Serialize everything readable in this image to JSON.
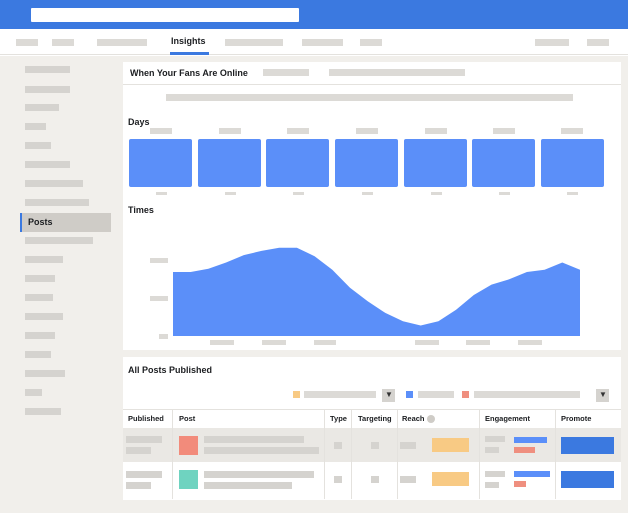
{
  "nav": {
    "active_tab": "Insights"
  },
  "sidebar": {
    "active_item": "Posts"
  },
  "fans_panel": {
    "title": "When Your Fans Are Online",
    "days_label": "Days",
    "times_label": "Times",
    "days_count": 7,
    "times_series_shape": [
      0.61,
      0.61,
      0.64,
      0.7,
      0.77,
      0.81,
      0.84,
      0.84,
      0.76,
      0.63,
      0.46,
      0.33,
      0.22,
      0.14,
      0.1,
      0.14,
      0.25,
      0.39,
      0.49,
      0.54,
      0.61,
      0.63,
      0.7,
      0.63
    ]
  },
  "posts_panel": {
    "title": "All Posts Published",
    "columns": [
      "Published",
      "Post",
      "Type",
      "Targeting",
      "Reach",
      "Engagement",
      "Promote"
    ],
    "legend_colors": [
      "#f8ca84",
      "#5b8ff9",
      "#ef8f7f"
    ],
    "rows": [
      {
        "thumb_color": "#f28b7b",
        "reach": 0.75,
        "engagement_blue": 0.8,
        "engagement_red": 0.4
      },
      {
        "thumb_color": "#6fd3c0",
        "reach": 0.75,
        "engagement_blue": 0.85,
        "engagement_red": 0.3
      }
    ]
  },
  "colors": {
    "accent": "#3b79e0",
    "chart_blue": "#5b8ff9",
    "sidebar_bg": "#f1efeb"
  }
}
